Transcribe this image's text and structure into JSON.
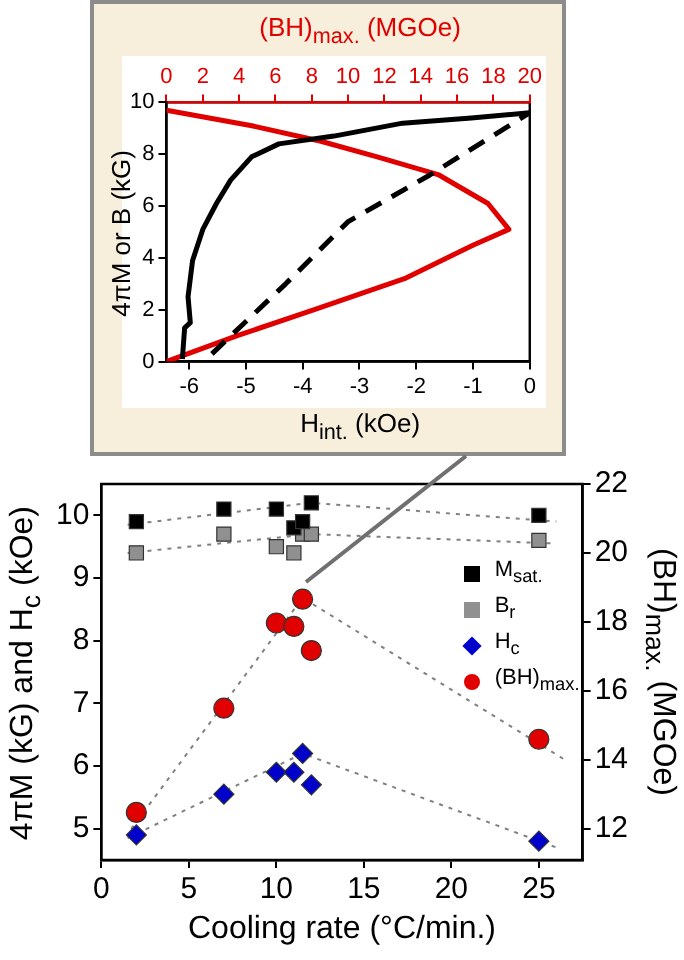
{
  "chart_data": [
    {
      "type": "line",
      "xlabel": "H$_{int.}$ (kOe)",
      "x2label": "(BH)$_{max.}$ (MGOe)",
      "ylabel": "4πM or B (kG)",
      "xlim": [
        -6.4,
        0
      ],
      "xticks": [
        -6,
        -5,
        -4,
        -3,
        -2,
        -1,
        0
      ],
      "x2lim": [
        0,
        20
      ],
      "x2ticks": [
        0,
        2,
        4,
        6,
        8,
        10,
        12,
        14,
        16,
        18,
        20
      ],
      "ylim": [
        0,
        10
      ],
      "yticks": [
        0,
        2,
        4,
        6,
        8,
        10
      ],
      "grid": false,
      "legend": false,
      "marker": "none",
      "series": [
        {
          "color": "#000000",
          "line_style": "solid",
          "x": [
            0,
            -1.03,
            -2.24,
            -3.45,
            -4.42,
            -4.9,
            -5.27,
            -5.52,
            -5.76,
            -5.94,
            -6.02,
            -5.98,
            -6.08,
            -6.12
          ],
          "values": [
            9.6,
            9.4,
            9.2,
            8.7,
            8.4,
            7.9,
            7.0,
            6.1,
            5.1,
            3.9,
            2.5,
            1.5,
            1.3,
            0.1
          ]
        },
        {
          "color": "#000000",
          "line_style": "dashed",
          "x": [
            -5.6,
            -4.3,
            -3.2,
            -1.76,
            0
          ],
          "values": [
            0.3,
            3.0,
            5.4,
            7.2,
            9.6
          ]
        },
        {
          "color": "#e00000",
          "line_style": "solid",
          "axis": "x2",
          "x": [
            0,
            3.9,
            8.1,
            13.1,
            16.9,
            18.85,
            17.7,
            15.0,
            11.6,
            8.5,
            4.7,
            0
          ],
          "values": [
            0,
            1.0,
            2.0,
            3.2,
            4.5,
            5.1,
            6.1,
            7.2,
            7.9,
            8.5,
            9.1,
            9.7
          ]
        }
      ]
    },
    {
      "type": "scatter",
      "xlabel": "Cooling rate (°C/min.)",
      "ylabel": "4πM (kG) and H$_{c}$ (kOe)",
      "y2label": "(BH)$_{max.}$ (MGOe)",
      "xlim": [
        0,
        27.5
      ],
      "xticks": [
        0,
        5,
        10,
        15,
        20,
        25
      ],
      "ylim": [
        4.5,
        10.5
      ],
      "yticks": [
        5,
        6,
        7,
        8,
        9,
        10
      ],
      "y2lim": [
        11.1,
        22
      ],
      "y2ticks": [
        12,
        14,
        16,
        18,
        20,
        22
      ],
      "grid": false,
      "legend": "right",
      "series": [
        {
          "name": "M$_{sat.}$",
          "color": "#000000",
          "marker": "square",
          "x": [
            2,
            7,
            10,
            11,
            11.5,
            12,
            25
          ],
          "values": [
            9.9,
            10.1,
            10.1,
            9.8,
            9.9,
            10.2,
            10.0
          ]
        },
        {
          "name": "B$_{r}$",
          "color": "#909090",
          "marker": "square",
          "x": [
            2,
            7,
            10,
            11,
            11.5,
            12,
            25
          ],
          "values": [
            9.4,
            9.7,
            9.5,
            9.4,
            9.7,
            9.7,
            9.6
          ]
        },
        {
          "name": "H$_{c}$",
          "color": "#0000cc",
          "marker": "diamond",
          "x": [
            2,
            7,
            10,
            11,
            11.5,
            12,
            25
          ],
          "values": [
            4.9,
            5.55,
            5.9,
            5.9,
            6.2,
            5.7,
            4.8
          ]
        },
        {
          "name": "(BH)$_{max.}$",
          "color": "#e00000",
          "marker": "circle",
          "axis": "y2",
          "x": [
            2,
            7,
            10,
            11,
            11.5,
            12,
            25
          ],
          "values": [
            12.48,
            15.5,
            17.97,
            17.87,
            18.66,
            17.17,
            14.6
          ]
        },
        {
          "type": "line",
          "color": "#808080",
          "line_style": "dotted",
          "marker": "none",
          "x": [
            1.5,
            12,
            26
          ],
          "values": [
            9.85,
            10.2,
            9.9
          ]
        },
        {
          "type": "line",
          "color": "#808080",
          "line_style": "dotted",
          "marker": "none",
          "x": [
            1.5,
            12,
            26
          ],
          "values": [
            9.4,
            9.7,
            9.55
          ]
        },
        {
          "type": "line",
          "color": "#808080",
          "line_style": "dotted",
          "marker": "none",
          "x": [
            1.5,
            11.5,
            26
          ],
          "values": [
            4.85,
            6.2,
            4.7
          ]
        },
        {
          "type": "line",
          "color": "#808080",
          "line_style": "dotted",
          "marker": "none",
          "axis": "y2",
          "x": [
            1.7,
            11.5,
            26.5
          ],
          "values": [
            12.0,
            18.7,
            14.0
          ]
        }
      ]
    }
  ]
}
